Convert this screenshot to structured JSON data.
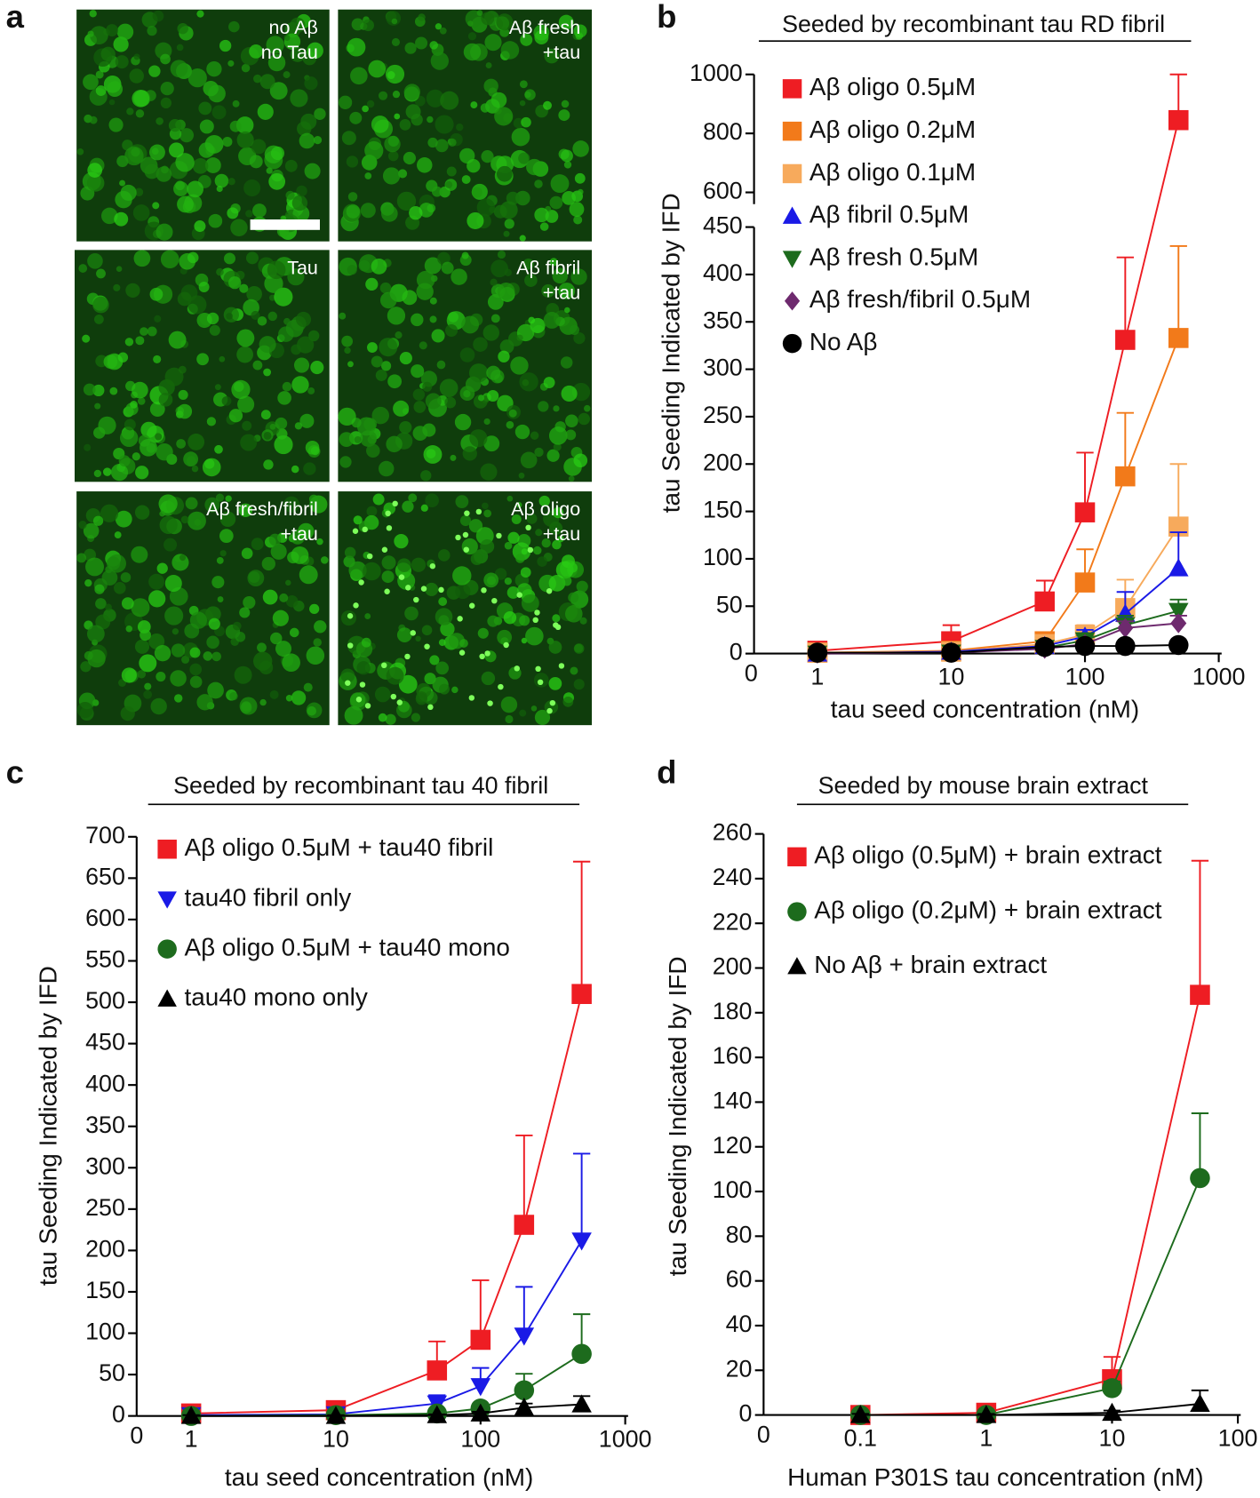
{
  "panel_a": {
    "panel": "a",
    "images": [
      {
        "label": [
          "no Aβ",
          "no Tau"
        ]
      },
      {
        "label": [
          "Aβ fresh",
          "+tau"
        ]
      },
      {
        "label": [
          "Tau"
        ]
      },
      {
        "label": [
          "Aβ fibril",
          "+tau"
        ]
      },
      {
        "label": [
          "Aβ fresh/fibril",
          "+tau"
        ]
      },
      {
        "label": [
          "Aβ oligo",
          "+tau"
        ]
      }
    ]
  },
  "chart_data": [
    {
      "panel": "b",
      "type": "line",
      "title": "Seeded by recombinant tau RD fibril",
      "x_label": "tau seed concentration (nM)",
      "y_label": "tau Seeding Indicated by IFD",
      "xscale": "log",
      "xlim": [
        0.32,
        1000
      ],
      "xticks": [
        1,
        10,
        100,
        1000
      ],
      "origin_label": "0",
      "ylim": [
        0,
        450
      ],
      "yticks": [
        0,
        50,
        100,
        150,
        200,
        250,
        300,
        350,
        400,
        450
      ],
      "ylim_upper": [
        560,
        1000
      ],
      "yticks_upper": [
        600,
        800,
        1000
      ],
      "x": [
        1,
        10,
        50,
        100,
        200,
        500
      ],
      "series": [
        {
          "name": "Aβ oligo 0.5μM",
          "color": "#ee1d23",
          "marker": "square",
          "values": [
            3,
            13,
            55,
            149,
            331,
            845
          ],
          "errors": [
            3,
            17,
            22,
            63,
            87,
            155
          ]
        },
        {
          "name": "Aβ oligo 0.2μM",
          "color": "#f27a1a",
          "marker": "square",
          "values": [
            1,
            3,
            13,
            75,
            187,
            333
          ],
          "errors": [
            2,
            4,
            8,
            35,
            67,
            97
          ]
        },
        {
          "name": "Aβ oligo 0.1μM",
          "color": "#f7aa5c",
          "marker": "square",
          "values": [
            1,
            2,
            10,
            20,
            48,
            134
          ],
          "errors": [
            1,
            2,
            5,
            10,
            30,
            66
          ]
        },
        {
          "name": "Aβ fibril 0.5μM",
          "color": "#1a1ae6",
          "marker": "triangle",
          "values": [
            0,
            2,
            8,
            18,
            42,
            90
          ],
          "errors": [
            1,
            1,
            3,
            7,
            23,
            38
          ]
        },
        {
          "name": "Aβ fresh 0.5μM",
          "color": "#1d6b1d",
          "marker": "triangle-down",
          "values": [
            0,
            1,
            6,
            14,
            30,
            45
          ],
          "errors": [
            1,
            1,
            3,
            5,
            10,
            12
          ]
        },
        {
          "name": "Aβ fresh/fibril 0.5μM",
          "color": "#6e2a6e",
          "marker": "diamond",
          "values": [
            0,
            1,
            5,
            10,
            27,
            32
          ],
          "errors": [
            1,
            1,
            2,
            4,
            7,
            8
          ]
        },
        {
          "name": "No Aβ",
          "color": "#000000",
          "marker": "circle",
          "values": [
            1,
            1,
            7,
            8,
            8,
            9
          ],
          "errors": [
            1,
            1,
            2,
            2,
            2,
            2
          ]
        }
      ]
    },
    {
      "panel": "c",
      "type": "line",
      "title": "Seeded by recombinant tau 40 fibril",
      "x_label": "tau seed concentration (nM)",
      "y_label": "tau Seeding Indicated by IFD",
      "xscale": "log",
      "xlim": [
        0.42,
        1000
      ],
      "xticks": [
        1,
        10,
        100,
        1000
      ],
      "origin_label": "0",
      "ylim": [
        0,
        700
      ],
      "yticks": [
        0,
        50,
        100,
        150,
        200,
        250,
        300,
        350,
        400,
        450,
        500,
        550,
        600,
        650,
        700
      ],
      "x": [
        1,
        10,
        50,
        100,
        200,
        500
      ],
      "series": [
        {
          "name": "Aβ oligo 0.5μM + tau40 fibril",
          "color": "#ee1d23",
          "marker": "square",
          "values": [
            3,
            7,
            55,
            92,
            231,
            510
          ],
          "errors": [
            3,
            5,
            35,
            72,
            108,
            160
          ]
        },
        {
          "name": "tau40 fibril only",
          "color": "#1a1ae6",
          "marker": "triangle-down",
          "values": [
            1,
            2,
            15,
            36,
            97,
            212
          ],
          "errors": [
            2,
            2,
            10,
            22,
            59,
            105
          ]
        },
        {
          "name": "Aβ oligo 0.5μM + tau40 mono",
          "color": "#1d6b1d",
          "marker": "circle",
          "values": [
            0,
            1,
            3,
            9,
            31,
            75
          ],
          "errors": [
            1,
            1,
            2,
            5,
            20,
            48
          ]
        },
        {
          "name": "tau40 mono only",
          "color": "#000000",
          "marker": "triangle",
          "values": [
            0,
            0,
            1,
            3,
            10,
            14
          ],
          "errors": [
            1,
            1,
            1,
            2,
            5,
            10
          ]
        }
      ]
    },
    {
      "panel": "d",
      "type": "line",
      "title": "Seeded by mouse brain extract",
      "x_label": "Human P301S tau concentration (nM)",
      "y_label": "tau Seeding Indicated by IFD",
      "xscale": "log",
      "xlim": [
        0.017,
        100
      ],
      "xticks": [
        0.1,
        1,
        10,
        100
      ],
      "origin_label": "0",
      "ylim": [
        0,
        260
      ],
      "yticks": [
        0,
        20,
        40,
        60,
        80,
        100,
        120,
        140,
        160,
        180,
        200,
        220,
        240,
        260
      ],
      "x": [
        0.1,
        1,
        10,
        50
      ],
      "series": [
        {
          "name": "Aβ oligo (0.5μM) + brain extract",
          "color": "#ee1d23",
          "marker": "square",
          "values": [
            0,
            1,
            16,
            188
          ],
          "errors": [
            1,
            1,
            10,
            60
          ]
        },
        {
          "name": "Aβ oligo (0.2μM) + brain extract",
          "color": "#1d6b1d",
          "marker": "circle",
          "values": [
            0,
            0,
            12,
            106
          ],
          "errors": [
            1,
            1,
            3,
            29
          ]
        },
        {
          "name": "No Aβ + brain extract",
          "color": "#000000",
          "marker": "triangle",
          "values": [
            0,
            0,
            1,
            5
          ],
          "errors": [
            0.5,
            0.5,
            1,
            6
          ]
        }
      ]
    }
  ]
}
